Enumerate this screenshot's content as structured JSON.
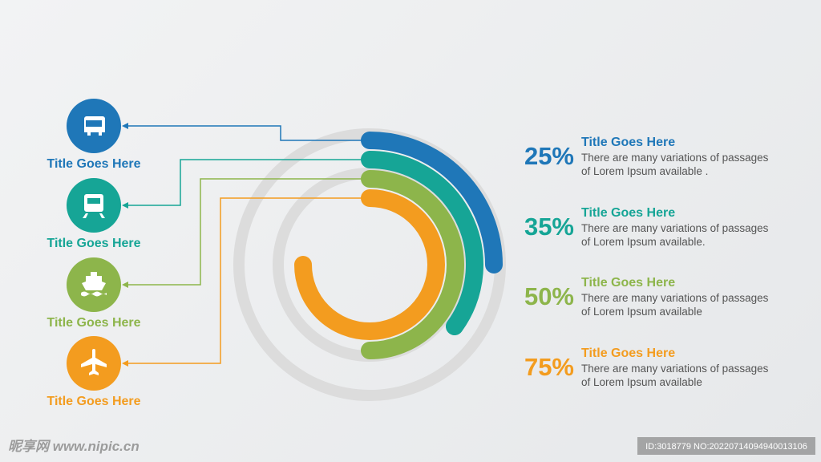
{
  "chart_data": {
    "type": "radial-progress",
    "icon_labels": [
      "Title Goes Here",
      "Title Goes Here",
      "Title Goes Here",
      "Title Goes Here"
    ],
    "categories": [
      "Title Goes Here",
      "Title Goes Here",
      "Title Goes Here",
      "Title Goes Here"
    ],
    "values": [
      25,
      35,
      50,
      75
    ],
    "value_labels": [
      "25%",
      "35%",
      "50%",
      "75%"
    ],
    "colors": [
      "#1f77b8",
      "#16a596",
      "#8db54b",
      "#f39c1f"
    ],
    "descriptions": [
      [
        "There are many variations of passages",
        "of Lorem Ipsum available ."
      ],
      [
        "There are many variations of passages",
        "of Lorem Ipsum available."
      ],
      [
        "There are many variations of passages",
        "of Lorem Ipsum available"
      ],
      [
        "There are many variations of passages",
        "of Lorem Ipsum available"
      ]
    ],
    "watermark": "昵享网 www.nipic.cn",
    "image_id": "ID:3018779 NO:20220714094940013106"
  }
}
